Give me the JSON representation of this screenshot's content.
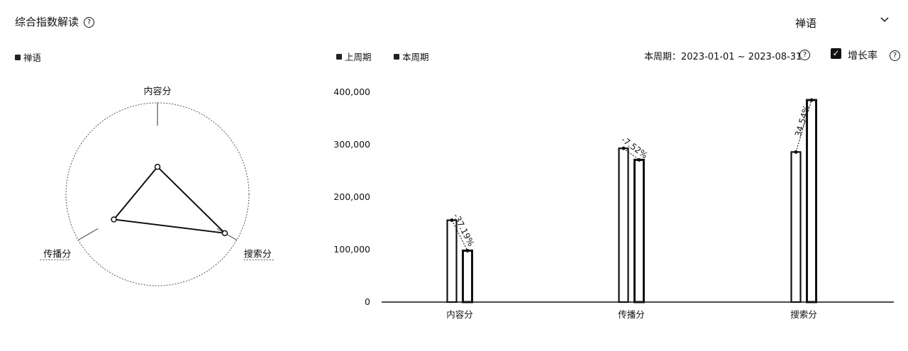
{
  "header": {
    "title": "综合指数解读",
    "help_icon": "question-circle-icon",
    "brand_select": "禅语",
    "chevron_icon": "chevron-down-icon"
  },
  "radar_legend": {
    "label": "禅语"
  },
  "bar_legend": {
    "prev_label": "上周期",
    "curr_label": "本周期"
  },
  "period": {
    "label": "本周期：2023-01-01 ~ 2023-08-31"
  },
  "growth": {
    "label": "增长率",
    "checked": true
  },
  "chart_data": [
    {
      "type": "radar",
      "axes": [
        "内容分",
        "搜索分",
        "传播分"
      ],
      "series": [
        {
          "name": "禅语",
          "values": [
            0.3,
            0.85,
            0.55
          ]
        }
      ],
      "legend": "top-left"
    },
    {
      "type": "bar",
      "categories": [
        "内容分",
        "传播分",
        "搜索分"
      ],
      "series": [
        {
          "name": "上周期",
          "values": [
            156000,
            293000,
            286000
          ]
        },
        {
          "name": "本周期",
          "values": [
            98000,
            271000,
            385000
          ]
        }
      ],
      "growth_rates": [
        "-37.19%",
        "-7.52%",
        "34.54%"
      ],
      "ylim": [
        0,
        400000
      ],
      "yticks": [
        0,
        100000,
        200000,
        300000,
        400000
      ],
      "ytick_labels": [
        "0",
        "100,000",
        "200,000",
        "300,000",
        "400,000"
      ],
      "legend": "top-left"
    }
  ]
}
